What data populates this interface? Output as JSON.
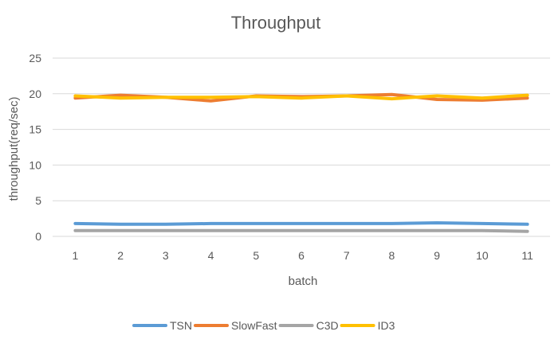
{
  "chart_data": {
    "type": "line",
    "title": "Throughput",
    "xlabel": "batch",
    "ylabel": "throughput(req/sec)",
    "ylim": [
      0,
      25
    ],
    "yticks": [
      0,
      5,
      10,
      15,
      20,
      25
    ],
    "grid": true,
    "legend_position": "bottom",
    "categories": [
      "1",
      "2",
      "3",
      "4",
      "5",
      "6",
      "7",
      "8",
      "9",
      "10",
      "11"
    ],
    "series": [
      {
        "name": "TSN",
        "color": "#5B9BD5",
        "values": [
          1.8,
          1.7,
          1.7,
          1.8,
          1.8,
          1.8,
          1.8,
          1.8,
          1.9,
          1.8,
          1.7
        ]
      },
      {
        "name": "SlowFast",
        "color": "#ED7D31",
        "values": [
          19.4,
          19.8,
          19.5,
          19.0,
          19.7,
          19.6,
          19.7,
          19.9,
          19.2,
          19.1,
          19.4
        ]
      },
      {
        "name": "C3D",
        "color": "#A5A5A5",
        "values": [
          0.8,
          0.8,
          0.8,
          0.8,
          0.8,
          0.8,
          0.8,
          0.8,
          0.8,
          0.8,
          0.7
        ]
      },
      {
        "name": "ID3",
        "color": "#FFC000",
        "values": [
          19.7,
          19.4,
          19.5,
          19.5,
          19.6,
          19.4,
          19.7,
          19.3,
          19.7,
          19.4,
          19.8
        ]
      }
    ]
  }
}
